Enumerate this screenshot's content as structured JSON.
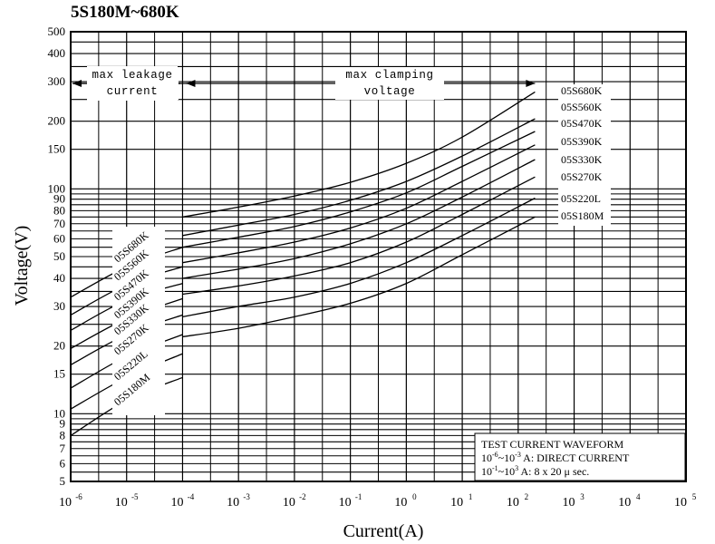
{
  "chart_data": {
    "type": "line",
    "title": "5S180M~680K",
    "xlabel": "Current(A)",
    "ylabel": "Voltage(V)",
    "x_scale": "log",
    "y_scale": "log",
    "xlim": [
      1e-06,
      100000
    ],
    "ylim": [
      5,
      500
    ],
    "x_ticks": [
      {
        "value": 1e-06,
        "base": "10",
        "exp": "-6"
      },
      {
        "value": 1e-05,
        "base": "10",
        "exp": "-5"
      },
      {
        "value": 0.0001,
        "base": "10",
        "exp": "-4"
      },
      {
        "value": 0.001,
        "base": "10",
        "exp": "-3"
      },
      {
        "value": 0.01,
        "base": "10",
        "exp": "-2"
      },
      {
        "value": 0.1,
        "base": "10",
        "exp": "-1"
      },
      {
        "value": 1,
        "base": "10",
        "exp": "0"
      },
      {
        "value": 10,
        "base": "10",
        "exp": "1"
      },
      {
        "value": 100,
        "base": "10",
        "exp": "2"
      },
      {
        "value": 1000,
        "base": "10",
        "exp": "3"
      },
      {
        "value": 10000,
        "base": "10",
        "exp": "4"
      },
      {
        "value": 100000,
        "base": "10",
        "exp": "5"
      }
    ],
    "y_ticks": [
      5,
      6,
      7,
      8,
      9,
      10,
      15,
      20,
      30,
      40,
      50,
      60,
      70,
      80,
      90,
      100,
      150,
      200,
      300,
      400,
      500
    ],
    "grid": true,
    "series": [
      {
        "name": "05S180M",
        "leakage": [
          [
            1e-06,
            8.0
          ],
          [
            1e-05,
            11.5
          ],
          [
            0.0001,
            14.5
          ]
        ],
        "clamping": [
          [
            0.0001,
            22
          ],
          [
            0.001,
            24
          ],
          [
            0.01,
            27
          ],
          [
            0.1,
            31
          ],
          [
            1,
            38
          ],
          [
            10,
            51
          ],
          [
            200,
            75
          ]
        ]
      },
      {
        "name": "05S220L",
        "leakage": [
          [
            1e-06,
            10.5
          ],
          [
            1e-05,
            14.5
          ],
          [
            0.0001,
            18.5
          ]
        ],
        "clamping": [
          [
            0.0001,
            27
          ],
          [
            0.001,
            30
          ],
          [
            0.01,
            33
          ],
          [
            0.1,
            38
          ],
          [
            1,
            47
          ],
          [
            10,
            62
          ],
          [
            200,
            91
          ]
        ]
      },
      {
        "name": "05S270K",
        "leakage": [
          [
            1e-06,
            13.0
          ],
          [
            1e-05,
            18.0
          ],
          [
            0.0001,
            22.5
          ]
        ],
        "clamping": [
          [
            0.0001,
            34
          ],
          [
            0.001,
            37
          ],
          [
            0.01,
            41
          ],
          [
            0.1,
            47
          ],
          [
            1,
            58
          ],
          [
            10,
            77
          ],
          [
            200,
            113
          ]
        ]
      },
      {
        "name": "05S330K",
        "leakage": [
          [
            1e-06,
            16.5
          ],
          [
            1e-05,
            22.5
          ],
          [
            0.0001,
            27.5
          ]
        ],
        "clamping": [
          [
            0.0001,
            40
          ],
          [
            0.001,
            44
          ],
          [
            0.01,
            49
          ],
          [
            0.1,
            57
          ],
          [
            1,
            70
          ],
          [
            10,
            92
          ],
          [
            200,
            135
          ]
        ]
      },
      {
        "name": "05S390K",
        "leakage": [
          [
            1e-06,
            19.5
          ],
          [
            1e-05,
            26.5
          ],
          [
            0.0001,
            32.5
          ]
        ],
        "clamping": [
          [
            0.0001,
            47
          ],
          [
            0.001,
            52
          ],
          [
            0.01,
            58
          ],
          [
            0.1,
            67
          ],
          [
            1,
            82
          ],
          [
            10,
            108
          ],
          [
            200,
            157
          ]
        ]
      },
      {
        "name": "05S470K",
        "leakage": [
          [
            1e-06,
            23.5
          ],
          [
            1e-05,
            32.0
          ],
          [
            0.0001,
            38.0
          ]
        ],
        "clamping": [
          [
            0.0001,
            55
          ],
          [
            0.001,
            61
          ],
          [
            0.01,
            68
          ],
          [
            0.1,
            79
          ],
          [
            1,
            96
          ],
          [
            10,
            126
          ],
          [
            200,
            180
          ]
        ]
      },
      {
        "name": "05S560K",
        "leakage": [
          [
            1e-06,
            27.5
          ],
          [
            1e-05,
            37.5
          ],
          [
            0.0001,
            45.0
          ]
        ],
        "clamping": [
          [
            0.0001,
            62
          ],
          [
            0.001,
            69
          ],
          [
            0.01,
            77
          ],
          [
            0.1,
            89
          ],
          [
            1,
            108
          ],
          [
            10,
            140
          ],
          [
            200,
            205
          ]
        ]
      },
      {
        "name": "05S680K",
        "leakage": [
          [
            1e-06,
            33.0
          ],
          [
            1e-05,
            45.0
          ],
          [
            0.0001,
            55.0
          ]
        ],
        "clamping": [
          [
            0.0001,
            75
          ],
          [
            0.001,
            83
          ],
          [
            0.01,
            93
          ],
          [
            0.1,
            107
          ],
          [
            1,
            130
          ],
          [
            10,
            170
          ],
          [
            200,
            270
          ]
        ]
      }
    ],
    "annotations": {
      "leakage_region": [
        "max leakage",
        "current"
      ],
      "clamping_region": [
        "max clamping",
        "voltage"
      ]
    },
    "waveform_note": {
      "heading": "TEST CURRENT WAVEFORM",
      "line1_base": "10",
      "line1_exp1": "-6",
      "line1_mid": "~10",
      "line1_exp2": "-3",
      "line1_text": " A: DIRECT CURRENT",
      "line2_base": "10",
      "line2_exp1": "-1",
      "line2_mid": "~10",
      "line2_exp2": "3",
      "line2_text": " A: 8 x 20 μ sec."
    }
  }
}
